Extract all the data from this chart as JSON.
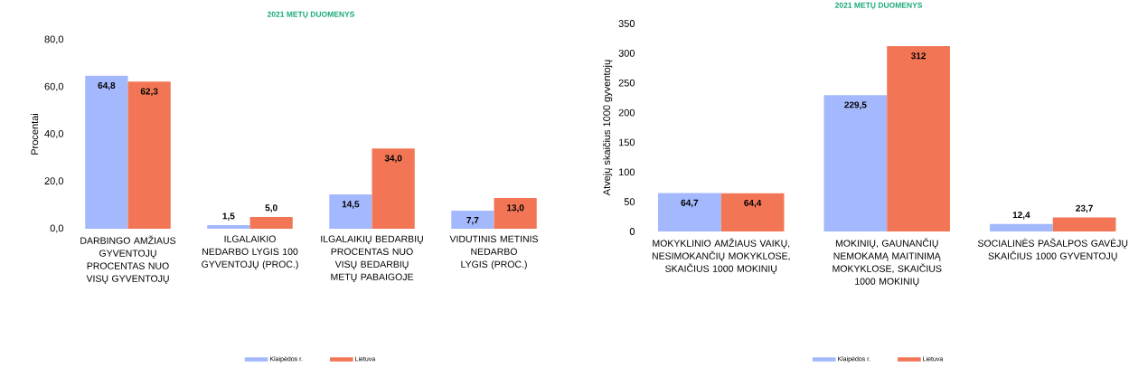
{
  "chart_data": [
    {
      "type": "bar",
      "title": "2021 METŲ DUOMENYS",
      "ylabel": "Procentai",
      "categories": [
        "DARBINGO AMŽIAUS GYVENTOJŲ PROCENTAS NUO VISŲ GYVENTOJŲ",
        "ILGALAIKIO NEDARBO LYGIS 100 GYVENTOJŲ (PROC.)",
        "ILGALAIKIŲ BEDARBIŲ PROCENTAS NUO VISŲ BEDARBIŲ METŲ PABAIGOJE",
        "VIDUTINIS METINIS NEDARBO LYGIS (PROC.)"
      ],
      "series": [
        {
          "name": "Klaipėdos r.",
          "color": "#a3b8fd",
          "values": [
            64.8,
            1.5,
            14.5,
            7.7
          ],
          "value_labels": [
            "64,8",
            "1,5",
            "14,5",
            "7,7"
          ]
        },
        {
          "name": "Lietuva",
          "color": "#f27656",
          "values": [
            62.3,
            5.0,
            34.0,
            13.0
          ],
          "value_labels": [
            "62,3",
            "5,0",
            "34,0",
            "13,0"
          ]
        }
      ],
      "ylim": [
        0,
        80
      ],
      "yticks": [
        {
          "value": 0,
          "label": "0,0"
        },
        {
          "value": 20,
          "label": "20,0"
        },
        {
          "value": 40,
          "label": "40,0"
        },
        {
          "value": 60,
          "label": "60,0"
        },
        {
          "value": 80,
          "label": "80,0"
        }
      ],
      "legend": "bottom"
    },
    {
      "type": "bar",
      "title": "2021 METŲ DUOMENYS",
      "ylabel": "Atvejų skaičius 1000 gyventojų",
      "categories": [
        "MOKYKLINIO AMŽIAUS VAIKŲ, NESIMOKANČIŲ MOKYKLOSE, SKAIČIUS 1000 MOKINIŲ",
        "MOKINIŲ, GAUNANČIŲ NEMOKAMĄ MAITINIMĄ MOKYKLOSE, SKAIČIUS 1000 MOKINIŲ",
        "SOCIALINĖS PAŠALPOS GAVĖJŲ SKAIČIUS 1000 GYVENTOJŲ"
      ],
      "series": [
        {
          "name": "Klaipėdos r.",
          "color": "#a3b8fd",
          "values": [
            64.7,
            229.5,
            12.4
          ],
          "value_labels": [
            "64,7",
            "229,5",
            "12,4"
          ]
        },
        {
          "name": "Lietuva",
          "color": "#f27656",
          "values": [
            64.4,
            312,
            23.7
          ],
          "value_labels": [
            "64,4",
            "312",
            "23,7"
          ]
        }
      ],
      "ylim": [
        0,
        350
      ],
      "yticks": [
        0,
        50,
        100,
        150,
        200,
        250,
        300,
        350
      ],
      "legend": "bottom"
    }
  ]
}
